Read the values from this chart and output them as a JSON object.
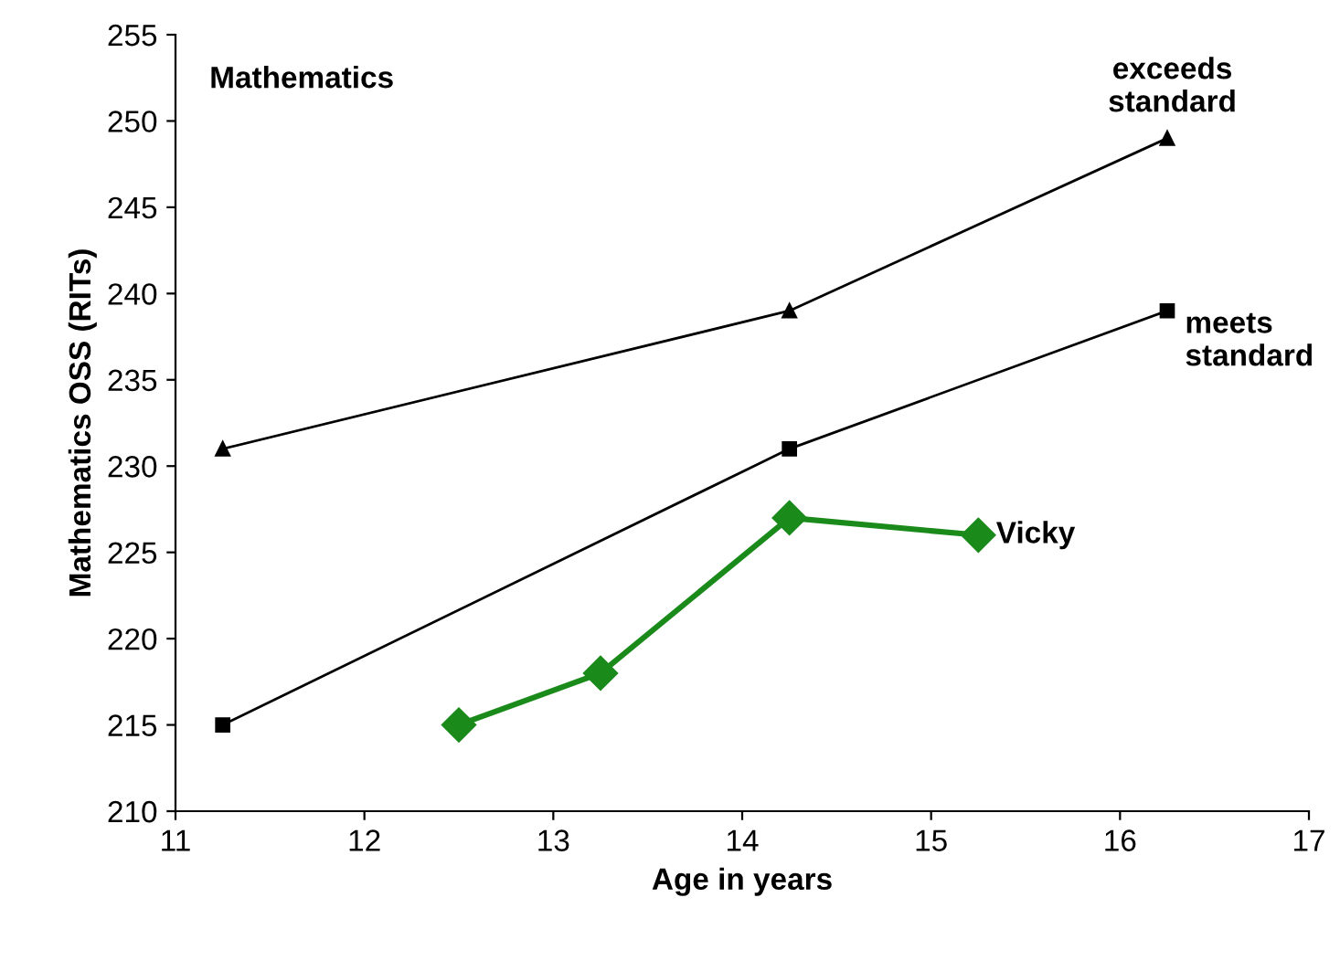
{
  "chart_data": {
    "type": "line",
    "title": "Mathematics",
    "xlabel": "Age in years",
    "ylabel": "Mathematics OSS (RITs)",
    "xlim": [
      11,
      17
    ],
    "xticks": [
      11,
      12,
      13,
      14,
      15,
      16,
      17
    ],
    "ylim": [
      210,
      255
    ],
    "yticks": [
      210,
      215,
      220,
      225,
      230,
      235,
      240,
      245,
      250,
      255
    ],
    "grid": false,
    "legend": false,
    "series": [
      {
        "name": "exceeds standard",
        "color": "#000000",
        "marker": "triangle",
        "x": [
          11.25,
          14.25,
          16.25
        ],
        "values": [
          231,
          239,
          249
        ]
      },
      {
        "name": "meets standard",
        "color": "#000000",
        "marker": "square",
        "x": [
          11.25,
          14.25,
          16.25
        ],
        "values": [
          215,
          231,
          239
        ]
      },
      {
        "name": "Vicky",
        "color": "#1a8a1a",
        "marker": "diamond",
        "x": [
          12.5,
          13.25,
          14.25,
          15.25
        ],
        "values": [
          215,
          218,
          227,
          226
        ]
      }
    ]
  }
}
